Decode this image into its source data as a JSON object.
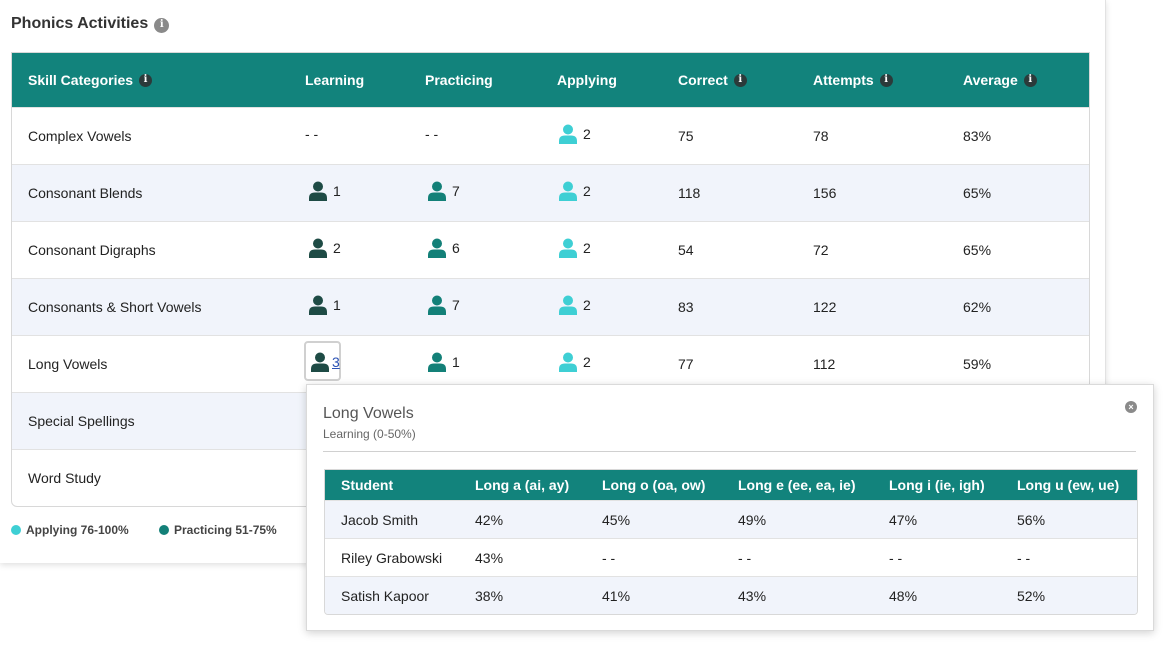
{
  "section_title": "Phonics Activities",
  "colors": {
    "header_teal": "#12837c",
    "learning": "#1e4b45",
    "practicing": "#138078",
    "applying": "#3ecfd4",
    "row_alt": "#f1f4fb",
    "link": "#2b52b4"
  },
  "main_table": {
    "headers": {
      "skill": "Skill Categories",
      "learning": "Learning",
      "practicing": "Practicing",
      "applying": "Applying",
      "correct": "Correct",
      "attempts": "Attempts",
      "average": "Average"
    },
    "rows": [
      {
        "skill": "Complex Vowels",
        "learning": "- -",
        "practicing": "- -",
        "applying": "2",
        "correct": "75",
        "attempts": "78",
        "average": "83%"
      },
      {
        "skill": "Consonant Blends",
        "learning": "1",
        "practicing": "7",
        "applying": "2",
        "correct": "118",
        "attempts": "156",
        "average": "65%"
      },
      {
        "skill": "Consonant Digraphs",
        "learning": "2",
        "practicing": "6",
        "applying": "2",
        "correct": "54",
        "attempts": "72",
        "average": "65%"
      },
      {
        "skill": "Consonants & Short Vowels",
        "learning": "1",
        "practicing": "7",
        "applying": "2",
        "correct": "83",
        "attempts": "122",
        "average": "62%"
      },
      {
        "skill": "Long Vowels",
        "learning": "3",
        "practicing": "1",
        "applying": "2",
        "correct": "77",
        "attempts": "112",
        "average": "59%"
      },
      {
        "skill": "Special Spellings"
      },
      {
        "skill": "Word Study"
      }
    ]
  },
  "legend": {
    "applying": "Applying 76-100%",
    "practicing": "Practicing 51-75%"
  },
  "popover": {
    "title": "Long Vowels",
    "subtitle": "Learning (0-50%)",
    "headers": {
      "student": "Student",
      "long_a": "Long a (ai, ay)",
      "long_o": "Long o (oa, ow)",
      "long_e": "Long e (ee, ea, ie)",
      "long_i": "Long i (ie, igh)",
      "long_u": "Long u (ew, ue)"
    },
    "rows": [
      {
        "student": "Jacob Smith",
        "long_a": "42%",
        "long_o": "45%",
        "long_e": "49%",
        "long_i": "47%",
        "long_u": "56%"
      },
      {
        "student": "Riley Grabowski",
        "long_a": "43%",
        "long_o": "- -",
        "long_e": "- -",
        "long_i": "- -",
        "long_u": "- -"
      },
      {
        "student": "Satish Kapoor",
        "long_a": "38%",
        "long_o": "41%",
        "long_e": "43%",
        "long_i": "48%",
        "long_u": "52%"
      }
    ]
  }
}
